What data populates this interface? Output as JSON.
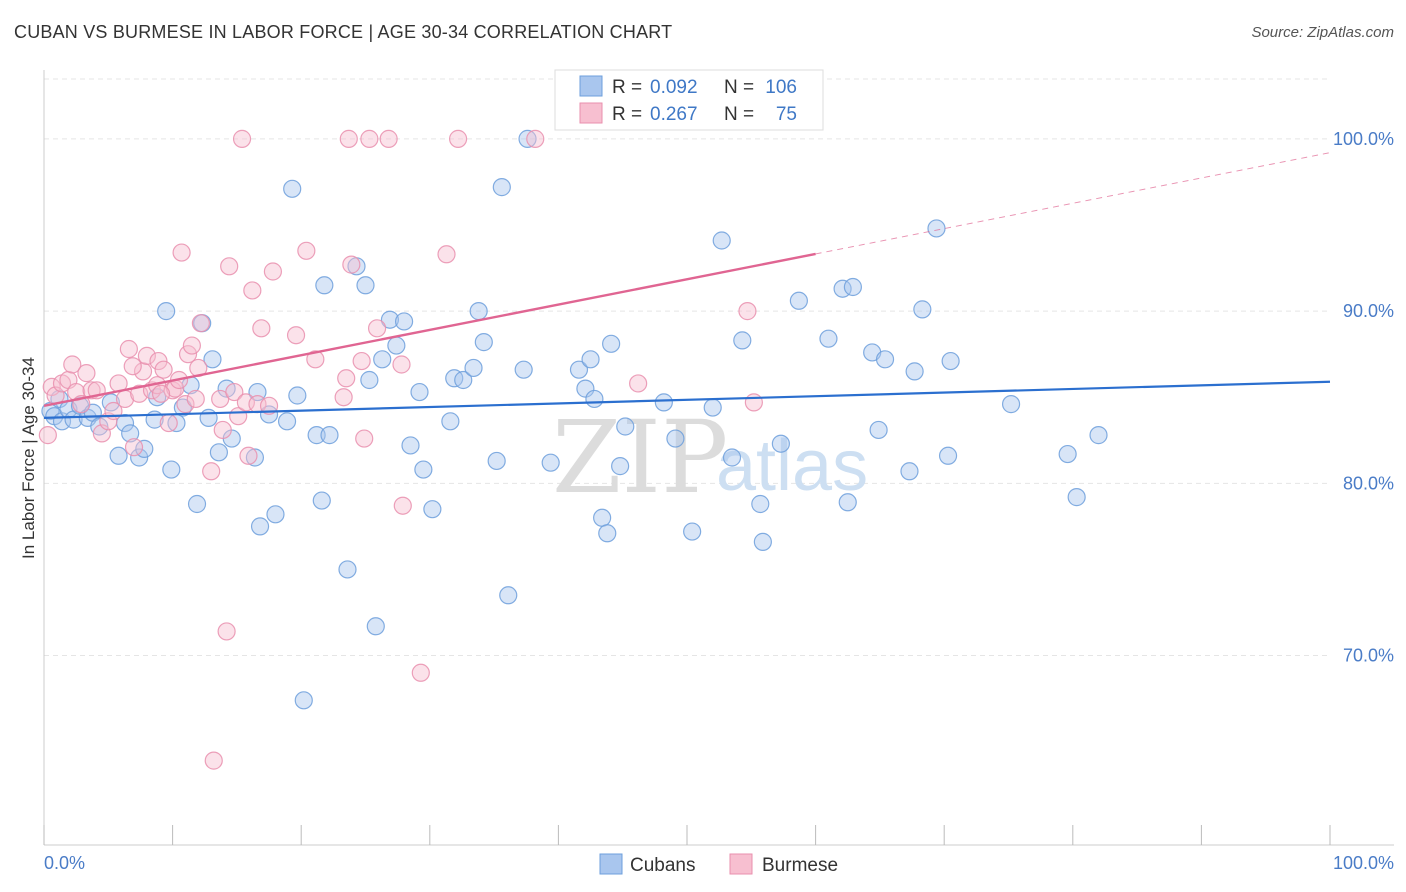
{
  "title": "CUBAN VS BURMESE IN LABOR FORCE | AGE 30-34 CORRELATION CHART",
  "source": "Source: ZipAtlas.com",
  "watermark": {
    "zip": "ZIP",
    "atlas": "atlas"
  },
  "colors": {
    "cubans_fill": "#a9c6ee",
    "cubans_stroke": "#6d9fdc",
    "cubans_line": "#2b6fcf",
    "burmese_fill": "#f7bfd0",
    "burmese_stroke": "#e98fae",
    "burmese_line": "#e06592",
    "grid": "#e5e5e5",
    "tick_label": "#4a7cc7"
  },
  "legend_stats": {
    "cubans": {
      "r_label": "R = ",
      "r_value": "0.092",
      "n_label": "N = ",
      "n_value": "106"
    },
    "burmese": {
      "r_label": "R = ",
      "r_value": "0.267",
      "n_label": "N = ",
      "n_value": "75"
    }
  },
  "chart_data": {
    "type": "scatter",
    "title": "CUBAN VS BURMESE IN LABOR FORCE | AGE 30-34 CORRELATION CHART",
    "xlabel": "",
    "ylabel": "In Labor Force | Age 30-34",
    "xlim": [
      0,
      100
    ],
    "ylim": [
      59,
      104
    ],
    "x_ticks": [
      0,
      10,
      20,
      30,
      40,
      50,
      60,
      70,
      80,
      90,
      100
    ],
    "x_tick_labels": {
      "left": "0.0%",
      "right": "100.0%"
    },
    "y_ticks": [
      70,
      80,
      90,
      100
    ],
    "y_tick_labels": [
      "70.0%",
      "80.0%",
      "90.0%",
      "100.0%"
    ],
    "grid": true,
    "legend_position": "bottom",
    "series": [
      {
        "name": "Cubans",
        "r": 0.092,
        "n": 106,
        "trend": {
          "x": [
            0,
            100
          ],
          "y": [
            83.8,
            85.9
          ],
          "dashed_from": null
        },
        "points": [
          [
            0.5,
            84.2
          ],
          [
            0.8,
            83.9
          ],
          [
            1.2,
            84.9
          ],
          [
            1.4,
            83.6
          ],
          [
            1.9,
            84.3
          ],
          [
            2.3,
            83.7
          ],
          [
            2.8,
            84.5
          ],
          [
            3.4,
            83.8
          ],
          [
            3.8,
            84.1
          ],
          [
            4.3,
            83.3
          ],
          [
            5.2,
            84.7
          ],
          [
            5.8,
            81.6
          ],
          [
            6.3,
            83.5
          ],
          [
            6.7,
            82.9
          ],
          [
            7.4,
            81.5
          ],
          [
            7.8,
            82.0
          ],
          [
            8.6,
            83.7
          ],
          [
            8.8,
            85.0
          ],
          [
            9.5,
            90.0
          ],
          [
            9.9,
            80.8
          ],
          [
            10.3,
            83.5
          ],
          [
            10.8,
            84.4
          ],
          [
            11.4,
            85.7
          ],
          [
            11.9,
            78.8
          ],
          [
            12.3,
            89.3
          ],
          [
            12.8,
            83.8
          ],
          [
            13.1,
            87.2
          ],
          [
            13.6,
            81.8
          ],
          [
            14.2,
            85.5
          ],
          [
            14.6,
            82.6
          ],
          [
            16.4,
            81.5
          ],
          [
            16.6,
            85.3
          ],
          [
            16.8,
            77.5
          ],
          [
            17.5,
            84.0
          ],
          [
            18.0,
            78.2
          ],
          [
            18.9,
            83.6
          ],
          [
            19.3,
            97.1
          ],
          [
            19.7,
            85.1
          ],
          [
            20.2,
            67.4
          ],
          [
            21.2,
            82.8
          ],
          [
            21.6,
            79.0
          ],
          [
            21.8,
            91.5
          ],
          [
            22.2,
            82.8
          ],
          [
            23.6,
            75.0
          ],
          [
            24.3,
            92.6
          ],
          [
            25.0,
            91.5
          ],
          [
            25.3,
            86.0
          ],
          [
            25.8,
            71.7
          ],
          [
            26.3,
            87.2
          ],
          [
            26.9,
            89.5
          ],
          [
            27.4,
            88.0
          ],
          [
            28.0,
            89.4
          ],
          [
            28.5,
            82.2
          ],
          [
            29.2,
            85.3
          ],
          [
            29.5,
            80.8
          ],
          [
            30.2,
            78.5
          ],
          [
            31.6,
            83.6
          ],
          [
            31.9,
            86.1
          ],
          [
            32.6,
            86.0
          ],
          [
            33.4,
            86.7
          ],
          [
            33.8,
            90.0
          ],
          [
            34.2,
            88.2
          ],
          [
            35.2,
            81.3
          ],
          [
            35.6,
            97.2
          ],
          [
            36.1,
            73.5
          ],
          [
            37.3,
            86.6
          ],
          [
            37.6,
            100.0
          ],
          [
            39.4,
            81.2
          ],
          [
            41.6,
            86.6
          ],
          [
            42.1,
            85.5
          ],
          [
            42.5,
            87.2
          ],
          [
            42.8,
            84.9
          ],
          [
            43.4,
            78.0
          ],
          [
            43.8,
            77.1
          ],
          [
            44.1,
            88.1
          ],
          [
            44.8,
            81.0
          ],
          [
            45.2,
            83.3
          ],
          [
            48.2,
            84.7
          ],
          [
            49.1,
            82.6
          ],
          [
            50.4,
            77.2
          ],
          [
            52.0,
            84.4
          ],
          [
            52.7,
            94.1
          ],
          [
            53.5,
            81.5
          ],
          [
            54.3,
            88.3
          ],
          [
            55.7,
            78.8
          ],
          [
            55.9,
            76.6
          ],
          [
            57.3,
            82.3
          ],
          [
            58.7,
            90.6
          ],
          [
            61.0,
            88.4
          ],
          [
            62.1,
            91.3
          ],
          [
            62.5,
            78.9
          ],
          [
            62.9,
            91.4
          ],
          [
            64.4,
            87.6
          ],
          [
            64.9,
            83.1
          ],
          [
            65.4,
            87.2
          ],
          [
            67.3,
            80.7
          ],
          [
            67.7,
            86.5
          ],
          [
            68.3,
            90.1
          ],
          [
            69.4,
            94.8
          ],
          [
            70.3,
            81.6
          ],
          [
            70.5,
            87.1
          ],
          [
            75.2,
            84.6
          ],
          [
            79.6,
            81.7
          ],
          [
            80.3,
            79.2
          ],
          [
            82.0,
            82.8
          ]
        ]
      },
      {
        "name": "Burmese",
        "r": 0.267,
        "n": 75,
        "trend": {
          "x": [
            0,
            100
          ],
          "y": [
            84.5,
            99.2
          ],
          "dashed_from": 60
        },
        "points": [
          [
            0.3,
            82.8
          ],
          [
            0.6,
            85.6
          ],
          [
            0.9,
            85.1
          ],
          [
            1.4,
            85.8
          ],
          [
            1.9,
            86.0
          ],
          [
            2.2,
            86.9
          ],
          [
            2.5,
            85.3
          ],
          [
            2.9,
            84.6
          ],
          [
            3.3,
            86.4
          ],
          [
            3.7,
            85.4
          ],
          [
            4.1,
            85.4
          ],
          [
            4.5,
            82.9
          ],
          [
            5.0,
            83.6
          ],
          [
            5.4,
            84.2
          ],
          [
            5.8,
            85.8
          ],
          [
            6.3,
            84.9
          ],
          [
            6.6,
            87.8
          ],
          [
            7.0,
            82.1
          ],
          [
            7.4,
            85.2
          ],
          [
            7.7,
            86.5
          ],
          [
            8.0,
            87.4
          ],
          [
            8.4,
            85.4
          ],
          [
            8.8,
            85.7
          ],
          [
            8.9,
            87.1
          ],
          [
            9.3,
            86.6
          ],
          [
            9.7,
            83.5
          ],
          [
            10.0,
            85.4
          ],
          [
            10.2,
            85.5
          ],
          [
            10.5,
            86.0
          ],
          [
            10.7,
            93.4
          ],
          [
            11.0,
            84.6
          ],
          [
            11.2,
            87.5
          ],
          [
            11.5,
            88.0
          ],
          [
            11.8,
            84.9
          ],
          [
            12.0,
            86.7
          ],
          [
            12.2,
            89.3
          ],
          [
            13.0,
            80.7
          ],
          [
            13.2,
            63.9
          ],
          [
            13.7,
            84.9
          ],
          [
            13.9,
            83.1
          ],
          [
            14.2,
            71.4
          ],
          [
            14.4,
            92.6
          ],
          [
            14.8,
            85.3
          ],
          [
            15.1,
            83.9
          ],
          [
            15.4,
            100.0
          ],
          [
            15.7,
            84.7
          ],
          [
            15.9,
            81.6
          ],
          [
            16.2,
            91.2
          ],
          [
            16.6,
            84.6
          ],
          [
            16.9,
            89.0
          ],
          [
            17.5,
            84.5
          ],
          [
            17.8,
            92.3
          ],
          [
            19.6,
            88.6
          ],
          [
            20.4,
            93.5
          ],
          [
            21.1,
            87.2
          ],
          [
            23.3,
            85.0
          ],
          [
            23.5,
            86.1
          ],
          [
            23.9,
            92.7
          ],
          [
            24.7,
            87.1
          ],
          [
            24.9,
            82.6
          ],
          [
            25.3,
            100.0
          ],
          [
            25.9,
            89.0
          ],
          [
            26.8,
            100.0
          ],
          [
            27.8,
            86.9
          ],
          [
            27.9,
            78.7
          ],
          [
            29.3,
            69.0
          ],
          [
            31.3,
            93.3
          ],
          [
            32.2,
            100.0
          ],
          [
            38.2,
            100.0
          ],
          [
            46.2,
            85.8
          ],
          [
            54.7,
            90.0
          ],
          [
            55.2,
            84.7
          ],
          [
            23.7,
            100.0
          ],
          [
            6.9,
            86.8
          ],
          [
            9.1,
            85.2
          ]
        ]
      }
    ]
  }
}
